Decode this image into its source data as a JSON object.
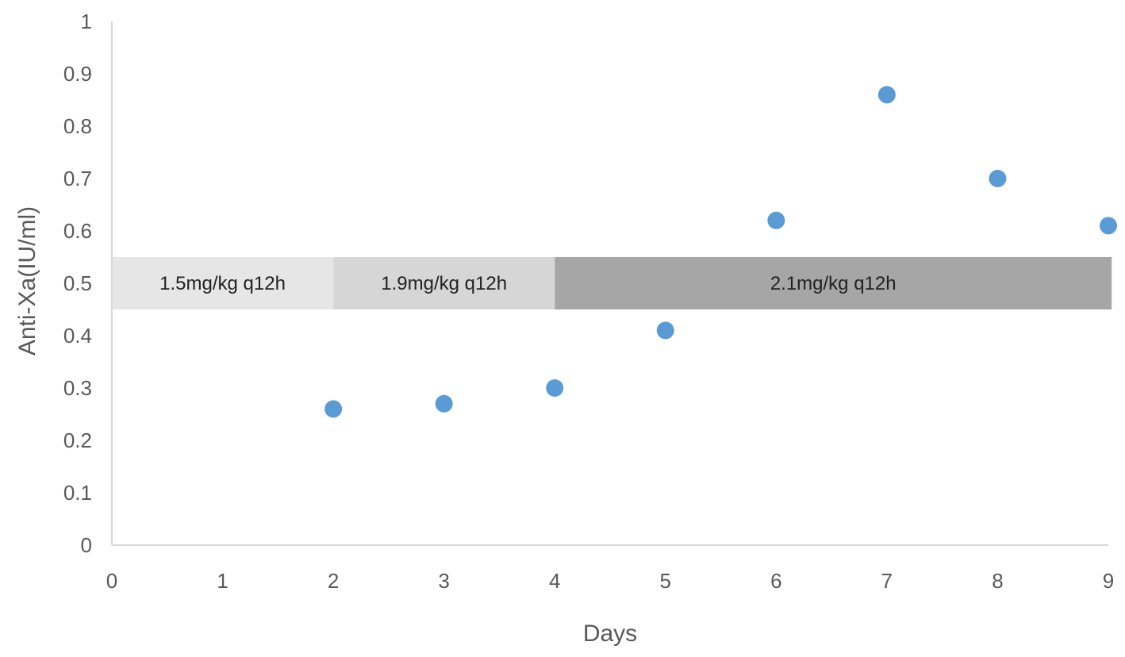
{
  "chart_data": {
    "type": "scatter",
    "xlabel": "Days",
    "ylabel": "Anti-Xa(IU/ml)",
    "xlim": [
      0,
      9
    ],
    "ylim": [
      0,
      1
    ],
    "xticks": [
      "0",
      "1",
      "2",
      "3",
      "4",
      "5",
      "6",
      "7",
      "8",
      "9"
    ],
    "yticks": [
      "0",
      "0.1",
      "0.2",
      "0.3",
      "0.4",
      "0.5",
      "0.6",
      "0.7",
      "0.8",
      "0.9",
      "1"
    ],
    "grid": false,
    "points": [
      {
        "x": 2,
        "y": 0.26
      },
      {
        "x": 3,
        "y": 0.27
      },
      {
        "x": 4,
        "y": 0.3
      },
      {
        "x": 5,
        "y": 0.41
      },
      {
        "x": 6,
        "y": 0.62
      },
      {
        "x": 7,
        "y": 0.86
      },
      {
        "x": 8,
        "y": 0.7
      },
      {
        "x": 9,
        "y": 0.61
      }
    ],
    "dose_bands": [
      {
        "label": "1.5mg/kg  q12h",
        "x_start": 0,
        "x_end": 2,
        "y_low": 0.45,
        "y_high": 0.55,
        "color": "#e6e6e6"
      },
      {
        "label": "1.9mg/kg q12h",
        "x_start": 2,
        "x_end": 4,
        "y_low": 0.45,
        "y_high": 0.55,
        "color": "#d6d6d6"
      },
      {
        "label": "2.1mg/kg q12h",
        "x_start": 4,
        "x_end": 9.03,
        "y_low": 0.45,
        "y_high": 0.55,
        "color": "#a6a6a6"
      }
    ],
    "colors": {
      "point": "#5b9bd5",
      "axis": "#d9d9d9",
      "text": "#595959"
    }
  }
}
